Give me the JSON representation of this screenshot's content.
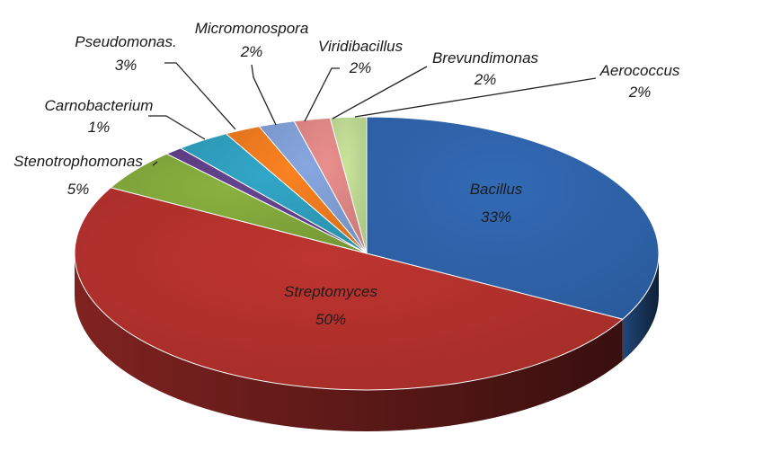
{
  "chart_data": {
    "type": "pie",
    "style": "3d",
    "title": "",
    "slices": [
      {
        "name": "Bacillus",
        "value": 33,
        "label": "33%",
        "color": "#2e62a8"
      },
      {
        "name": "Streptomyces",
        "value": 50,
        "label": "50%",
        "color": "#b0302c"
      },
      {
        "name": "Stenotrophomonas",
        "value": 5,
        "label": "5%",
        "color": "#7fa43a"
      },
      {
        "name": "Carnobacterium",
        "value": 1,
        "label": "1%",
        "color": "#5e3f86"
      },
      {
        "name": "Pseudomonas.",
        "value": 3,
        "label": "3%",
        "color": "#2e9bb9"
      },
      {
        "name": "Micromonospora",
        "value": 2,
        "label": "2%",
        "color": "#e8781f"
      },
      {
        "name": "Viridibacillus",
        "value": 2,
        "label": "2%",
        "color": "#7d9bd0"
      },
      {
        "name": "Brevundimonas",
        "value": 2,
        "label": "2%",
        "color": "#d98483"
      },
      {
        "name": "Aerococcus",
        "value": 2,
        "label": "2%",
        "color": "#b9d38f"
      }
    ]
  }
}
